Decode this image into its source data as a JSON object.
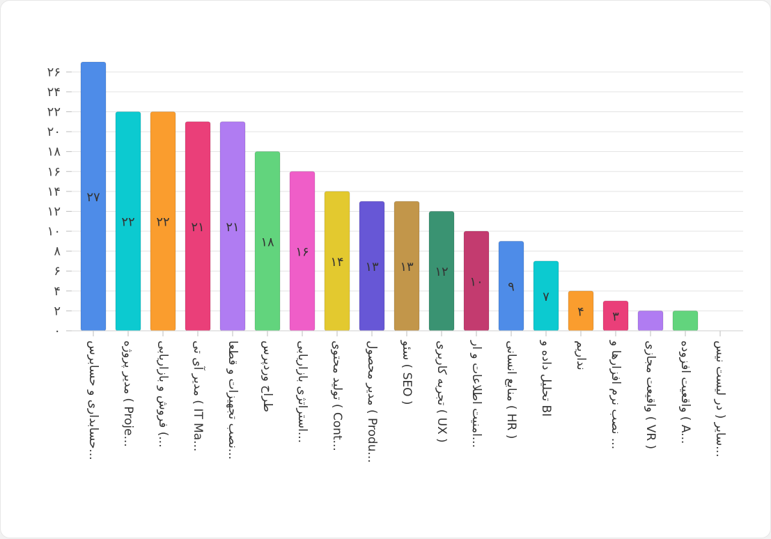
{
  "chart_data": {
    "type": "bar",
    "title": "",
    "xlabel": "",
    "ylabel": "",
    "ylim": [
      0,
      27
    ],
    "grid": true,
    "legend": "none",
    "y_ticks": [
      0,
      2,
      4,
      6,
      8,
      10,
      12,
      14,
      16,
      18,
      20,
      22,
      24,
      26
    ],
    "y_tick_labels": [
      "۰",
      "۲",
      "۴",
      "۶",
      "۸",
      "۱۰",
      "۱۲",
      "۱۴",
      "۱۶",
      "۱۸",
      "۲۰",
      "۲۲",
      "۲۴",
      "۲۶"
    ],
    "categories": [
      "حسابداری و حسابرس...",
      "مدیر پروژه ( Proje...",
      "فروش و بازاریابی (...",
      "مدیر آی تی ( IT Ma...",
      "نصب تجهیزات و قطعا...",
      "طراح وردپرس",
      "استراتژی بازاریابی...",
      "تولید محتوی ( Cont...",
      "مدیر محصول ( Produ...",
      "سئو ( SEO )",
      "تجربه کاربری ( UX )",
      "امنیت اطلاعات و ار...",
      "منابع انسانی ( HR )",
      "تحلیل داده و BI",
      "نداریم",
      "نصب نرم افزارها و ...",
      "واقیعت مجازی ( VR )",
      "واقعیت افزوده ( A...",
      "سایر ( در لیست نیس..."
    ],
    "values": [
      27,
      22,
      22,
      21,
      21,
      18,
      16,
      14,
      13,
      13,
      12,
      10,
      9,
      7,
      4,
      3,
      2,
      2,
      0
    ],
    "value_labels": [
      "۲۷",
      "۲۲",
      "۲۲",
      "۲۱",
      "۲۱",
      "۱۸",
      "۱۶",
      "۱۴",
      "۱۳",
      "۱۳",
      "۱۲",
      "۱۰",
      "۹",
      "۷",
      "۴",
      "۳",
      "",
      "",
      ""
    ],
    "colors": [
      "#4e8ce8",
      "#0ccad0",
      "#fa9d2e",
      "#ea3f79",
      "#b07cf2",
      "#62d47d",
      "#ef5ec8",
      "#e3c92f",
      "#6757d6",
      "#c2964a",
      "#3a9372",
      "#c33b6f",
      "#4e8ce8",
      "#0ccad0",
      "#fa9d2e",
      "#ea3f79",
      "#b07cf2",
      "#62d47d",
      "#ef5ec8"
    ]
  }
}
